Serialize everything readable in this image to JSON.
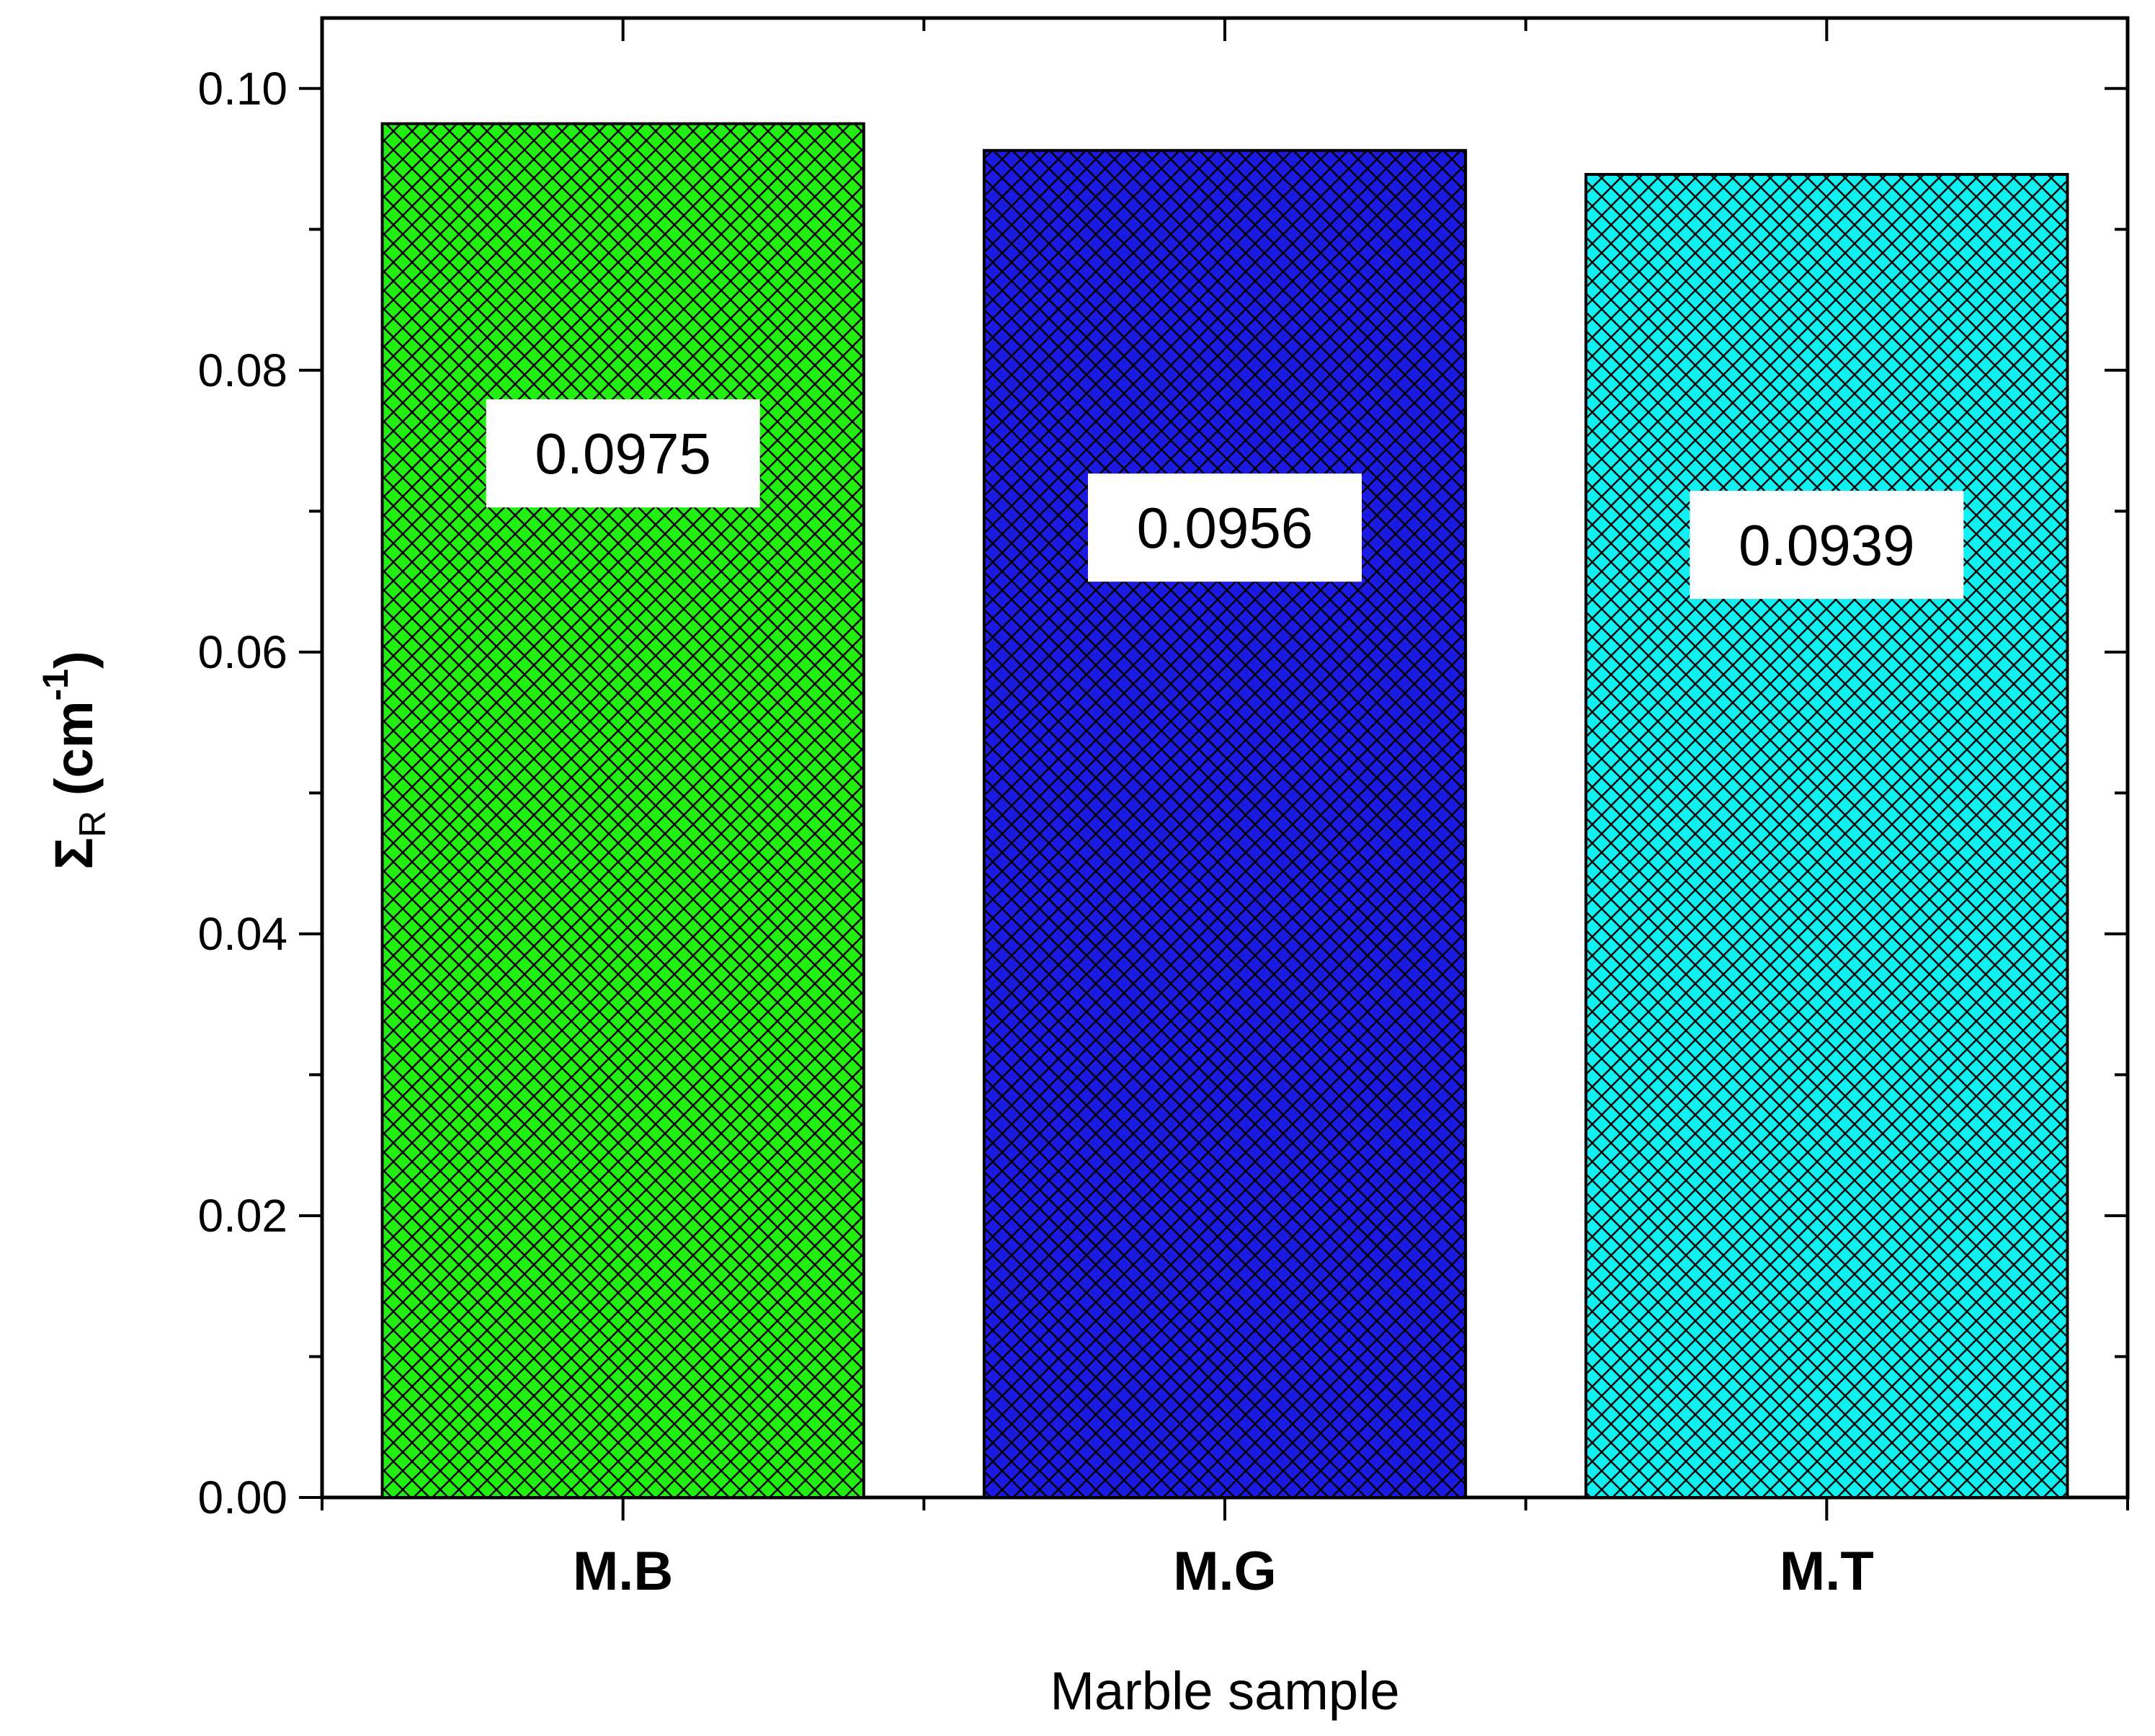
{
  "chart_data": {
    "type": "bar",
    "title": "",
    "xlabel": "Marble sample",
    "ylabel": {
      "symbol": "Σ",
      "subscript": "R",
      "unit_open": " (cm",
      "unit_sup": "-1",
      "unit_close": ")"
    },
    "ylim": [
      0,
      0.105
    ],
    "yticks": [
      0.0,
      0.02,
      0.04,
      0.06,
      0.08,
      0.1
    ],
    "ytick_labels": [
      "0.00",
      "0.02",
      "0.04",
      "0.06",
      "0.08",
      "0.10"
    ],
    "categories": [
      "M.B",
      "M.G",
      "M.T"
    ],
    "values": [
      0.0975,
      0.0956,
      0.0939
    ],
    "data_labels": [
      "0.0975",
      "0.0956",
      "0.0939"
    ],
    "colors": [
      "#22ee11",
      "#1a1ae0",
      "#11f0f0"
    ],
    "hatch": "crosshatch",
    "grid": false,
    "legend": "none"
  }
}
